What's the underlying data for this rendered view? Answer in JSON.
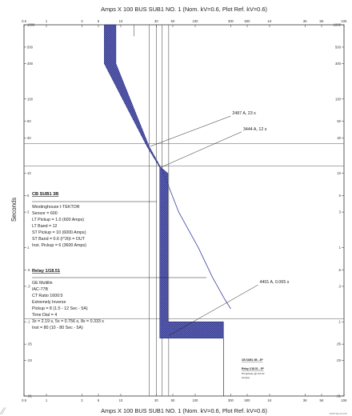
{
  "chart_data": {
    "type": "line",
    "title": "Amps  X  100   BUS SUB1 NO. 1 (Nom. kV=0.6, Plot Ref. kV=0.6)",
    "ylabel": "Seconds",
    "x_scale": "log",
    "y_scale": "log",
    "xlim": [
      0.5,
      10000
    ],
    "ylim": [
      0.01,
      1000
    ],
    "x_ticks": [
      "0.5",
      "1",
      "3",
      "5",
      "10",
      "30",
      "50",
      "100",
      "300",
      "500",
      "1K",
      "3K",
      "5K",
      "10K"
    ],
    "y_ticks": [
      "1000",
      "500",
      "300",
      "100",
      "50",
      "30",
      "10",
      "5",
      "3",
      "1",
      ".5",
      ".3",
      ".1",
      ".05",
      ".03",
      ".01"
    ],
    "series": [
      {
        "label": "CB SUB1 3B",
        "style": "hatched band",
        "min_curve": [
          [
            6,
            1000
          ],
          [
            6,
            300
          ],
          [
            22.5,
            23
          ],
          [
            33.4,
            12
          ],
          [
            33.4,
            0.06
          ],
          [
            45,
            0.06
          ],
          [
            240,
            0.06
          ],
          [
            240,
            0.01
          ]
        ],
        "max_curve": [
          [
            8.6,
            1000
          ],
          [
            8.6,
            300
          ],
          [
            24,
            23
          ],
          [
            34.4,
            12
          ],
          [
            43,
            10
          ],
          [
            43,
            0.1
          ],
          [
            240,
            0.1
          ],
          [
            240,
            0.01
          ]
        ]
      },
      {
        "label": "Relay 1/18.51",
        "style": "line",
        "points": [
          [
            35,
            12
          ],
          [
            60,
            3
          ],
          [
            110,
            1
          ],
          [
            170,
            0.4
          ],
          [
            250,
            0.2
          ],
          [
            300,
            0.15
          ]
        ]
      }
    ],
    "vertical_lines": [
      {
        "x": 24,
        "y_from": 0.01,
        "y_to": 1000
      },
      {
        "x": 30,
        "y_from": 0.01,
        "y_to": 1000
      },
      {
        "x": 36,
        "y_from": 0.01,
        "y_to": 1000
      },
      {
        "x": 44,
        "y_from": 0.01,
        "y_to": 1000
      },
      {
        "x": 15,
        "y_from": 700,
        "y_to": 1000
      }
    ],
    "horizontal_lines": [
      {
        "y": 25
      },
      {
        "y": 12.5
      },
      {
        "y": 0.11
      }
    ],
    "annotations": [
      {
        "id": "a1",
        "text": "2487 A, 23 s",
        "point": [
          24.87,
          23
        ],
        "text_at": [
          300,
          62
        ]
      },
      {
        "id": "a2",
        "text": "3444 A, 12 s",
        "point": [
          34.44,
          12
        ],
        "text_at": [
          420,
          38
        ]
      },
      {
        "id": "a3",
        "text": "4401 A, 0.065 s",
        "point": [
          44.01,
          0.065
        ],
        "text_at": [
          700,
          0.33
        ]
      }
    ],
    "device_labels": {
      "cb": {
        "title": "CB SUB1 3B",
        "lines": [
          "Westinghouse  I-TEKTOR",
          "Sensor = 600",
          "LT Pickup = 1.0 (600 Amps)",
          "LT Band = 12",
          "ST Pickup = 10 (6000 Amps)",
          "ST Band = 0.6  (I^2t)t = OUT",
          "Inst. Pickup = 6 (3600 Amps)"
        ]
      },
      "relay": {
        "title": "Relay 1/18.51",
        "lines": [
          "GE Multilin",
          "IAC-77B",
          "CT Ratio 1600:5",
          "Extremely Inverse",
          "Pickup = 8 (1.5 - 12  Sec - 5A)",
          "Time Dial = 4",
          "3x = 2.19 s, 5x = 0.756 s, 8x = 0.333 s",
          "Inst = 80 (10 - 80  Sec - 5A)"
        ]
      }
    },
    "legend": {
      "items": [
        "CB SUB1 3B - 3P",
        "Relay 1/18.51 - 3P",
        "Ph Aphase @ 0.6 kV",
        "(Amps)"
      ]
    },
    "footer_text": "ETAP Star 16.1.0C"
  }
}
